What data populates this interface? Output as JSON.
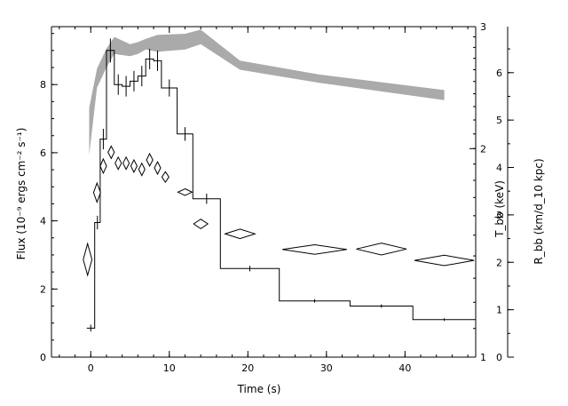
{
  "chart_data": {
    "type": "line",
    "xlabel": "Time (s)",
    "ylabel_left": "Flux (10⁻⁹ ergs cm⁻² s⁻¹)",
    "ylabel_right_inner": "T_bb (keV)",
    "ylabel_right_outer": "R_bb (km/d_10 kpc)",
    "xlim": [
      -5,
      49
    ],
    "ylim_left": [
      0,
      9.7
    ],
    "ylim_right_inner_log": [
      1,
      3
    ],
    "ylim_right_outer": [
      0,
      6.97
    ],
    "x_ticks": [
      0,
      10,
      20,
      30,
      40
    ],
    "y_ticks_left": [
      0,
      2,
      4,
      6,
      8
    ],
    "y_ticks_right_inner": [
      1,
      2,
      3
    ],
    "y_ticks_right_outer": [
      0,
      1,
      2,
      3,
      4,
      5,
      6
    ],
    "x_ticklabels": [
      "0",
      "10",
      "20",
      "30",
      "40"
    ],
    "y_ticklabels_left": [
      "0",
      "2",
      "4",
      "6",
      "8"
    ],
    "y_ticklabels_right_inner": [
      "1",
      "2",
      "3"
    ],
    "y_ticklabels_right_outer": [
      "0",
      "1",
      "2",
      "3",
      "4",
      "5",
      "6"
    ],
    "grid": false,
    "series": [
      {
        "style": "histogram",
        "color": "#000000",
        "points": [
          {
            "x0": -0.5,
            "x1": 0.5,
            "y": 0.85,
            "err": 0.1
          },
          {
            "x0": 0.5,
            "x1": 1.2,
            "y": 3.95,
            "err": 0.2
          },
          {
            "x0": 1.2,
            "x1": 2.0,
            "y": 6.4,
            "err": 0.3
          },
          {
            "x0": 2.0,
            "x1": 3.0,
            "y": 9.0,
            "err": 0.35
          },
          {
            "x0": 3.0,
            "x1": 4.0,
            "y": 8.0,
            "err": 0.3
          },
          {
            "x0": 4.0,
            "x1": 5.0,
            "y": 7.95,
            "err": 0.3
          },
          {
            "x0": 5.0,
            "x1": 6.0,
            "y": 8.1,
            "err": 0.3
          },
          {
            "x0": 6.0,
            "x1": 7.0,
            "y": 8.25,
            "err": 0.3
          },
          {
            "x0": 7.0,
            "x1": 8.0,
            "y": 8.75,
            "err": 0.3
          },
          {
            "x0": 8.0,
            "x1": 9.0,
            "y": 8.7,
            "err": 0.3
          },
          {
            "x0": 9.0,
            "x1": 11.0,
            "y": 7.9,
            "err": 0.25
          },
          {
            "x0": 11.0,
            "x1": 13.0,
            "y": 6.55,
            "err": 0.2
          },
          {
            "x0": 13.0,
            "x1": 16.5,
            "y": 4.65,
            "err": 0.15
          },
          {
            "x0": 16.5,
            "x1": 24.0,
            "y": 2.6,
            "err": 0.08
          },
          {
            "x0": 24.0,
            "x1": 33.0,
            "y": 1.65,
            "err": 0.05
          },
          {
            "x0": 33.0,
            "x1": 41.0,
            "y": 1.5,
            "err": 0.05
          },
          {
            "x0": 41.0,
            "x1": 49.0,
            "y": 1.1,
            "err": 0.04
          }
        ]
      },
      {
        "style": "band",
        "axis": "T_bb",
        "color": "#aaaaaa",
        "points": [
          {
            "x": -0.2,
            "lo": 1.96,
            "hi": 2.29
          },
          {
            "x": 0.8,
            "lo": 2.45,
            "hi": 2.61
          },
          {
            "x": 2.0,
            "lo": 2.62,
            "hi": 2.79
          },
          {
            "x": 3.0,
            "lo": 2.74,
            "hi": 2.9
          },
          {
            "x": 5.0,
            "lo": 2.72,
            "hi": 2.83
          },
          {
            "x": 6.0,
            "lo": 2.74,
            "hi": 2.85
          },
          {
            "x": 7.0,
            "lo": 2.78,
            "hi": 2.88
          },
          {
            "x": 8.5,
            "lo": 2.76,
            "hi": 2.92
          },
          {
            "x": 12.0,
            "lo": 2.78,
            "hi": 2.93
          },
          {
            "x": 14.0,
            "lo": 2.83,
            "hi": 2.97
          },
          {
            "x": 19.0,
            "lo": 2.6,
            "hi": 2.68
          },
          {
            "x": 29.0,
            "lo": 2.49,
            "hi": 2.56
          },
          {
            "x": 45.0,
            "lo": 2.35,
            "hi": 2.43
          }
        ]
      },
      {
        "style": "diamonds",
        "axis": "R_bb",
        "color": "#000000",
        "points": [
          {
            "x": -0.4,
            "y": 2.06,
            "w": 1.1,
            "h": 0.67
          },
          {
            "x": 0.8,
            "y": 3.47,
            "w": 0.9,
            "h": 0.4
          },
          {
            "x": 1.6,
            "y": 4.03,
            "w": 0.8,
            "h": 0.3
          },
          {
            "x": 2.6,
            "y": 4.32,
            "w": 0.8,
            "h": 0.26
          },
          {
            "x": 3.5,
            "y": 4.09,
            "w": 0.8,
            "h": 0.26
          },
          {
            "x": 4.5,
            "y": 4.09,
            "w": 0.8,
            "h": 0.26
          },
          {
            "x": 5.5,
            "y": 4.03,
            "w": 0.8,
            "h": 0.26
          },
          {
            "x": 6.5,
            "y": 3.96,
            "w": 0.8,
            "h": 0.26
          },
          {
            "x": 7.5,
            "y": 4.16,
            "w": 0.8,
            "h": 0.26
          },
          {
            "x": 8.5,
            "y": 3.99,
            "w": 0.8,
            "h": 0.26
          },
          {
            "x": 9.5,
            "y": 3.8,
            "w": 0.9,
            "h": 0.22
          },
          {
            "x": 12.0,
            "y": 3.48,
            "w": 1.8,
            "h": 0.14
          },
          {
            "x": 14.0,
            "y": 2.81,
            "w": 1.8,
            "h": 0.2
          },
          {
            "x": 19.0,
            "y": 2.6,
            "w": 3.8,
            "h": 0.2
          },
          {
            "x": 28.5,
            "y": 2.27,
            "w": 8.2,
            "h": 0.2
          },
          {
            "x": 37.0,
            "y": 2.28,
            "w": 6.4,
            "h": 0.25
          },
          {
            "x": 45.0,
            "y": 2.04,
            "w": 7.6,
            "h": 0.22
          }
        ]
      }
    ]
  }
}
